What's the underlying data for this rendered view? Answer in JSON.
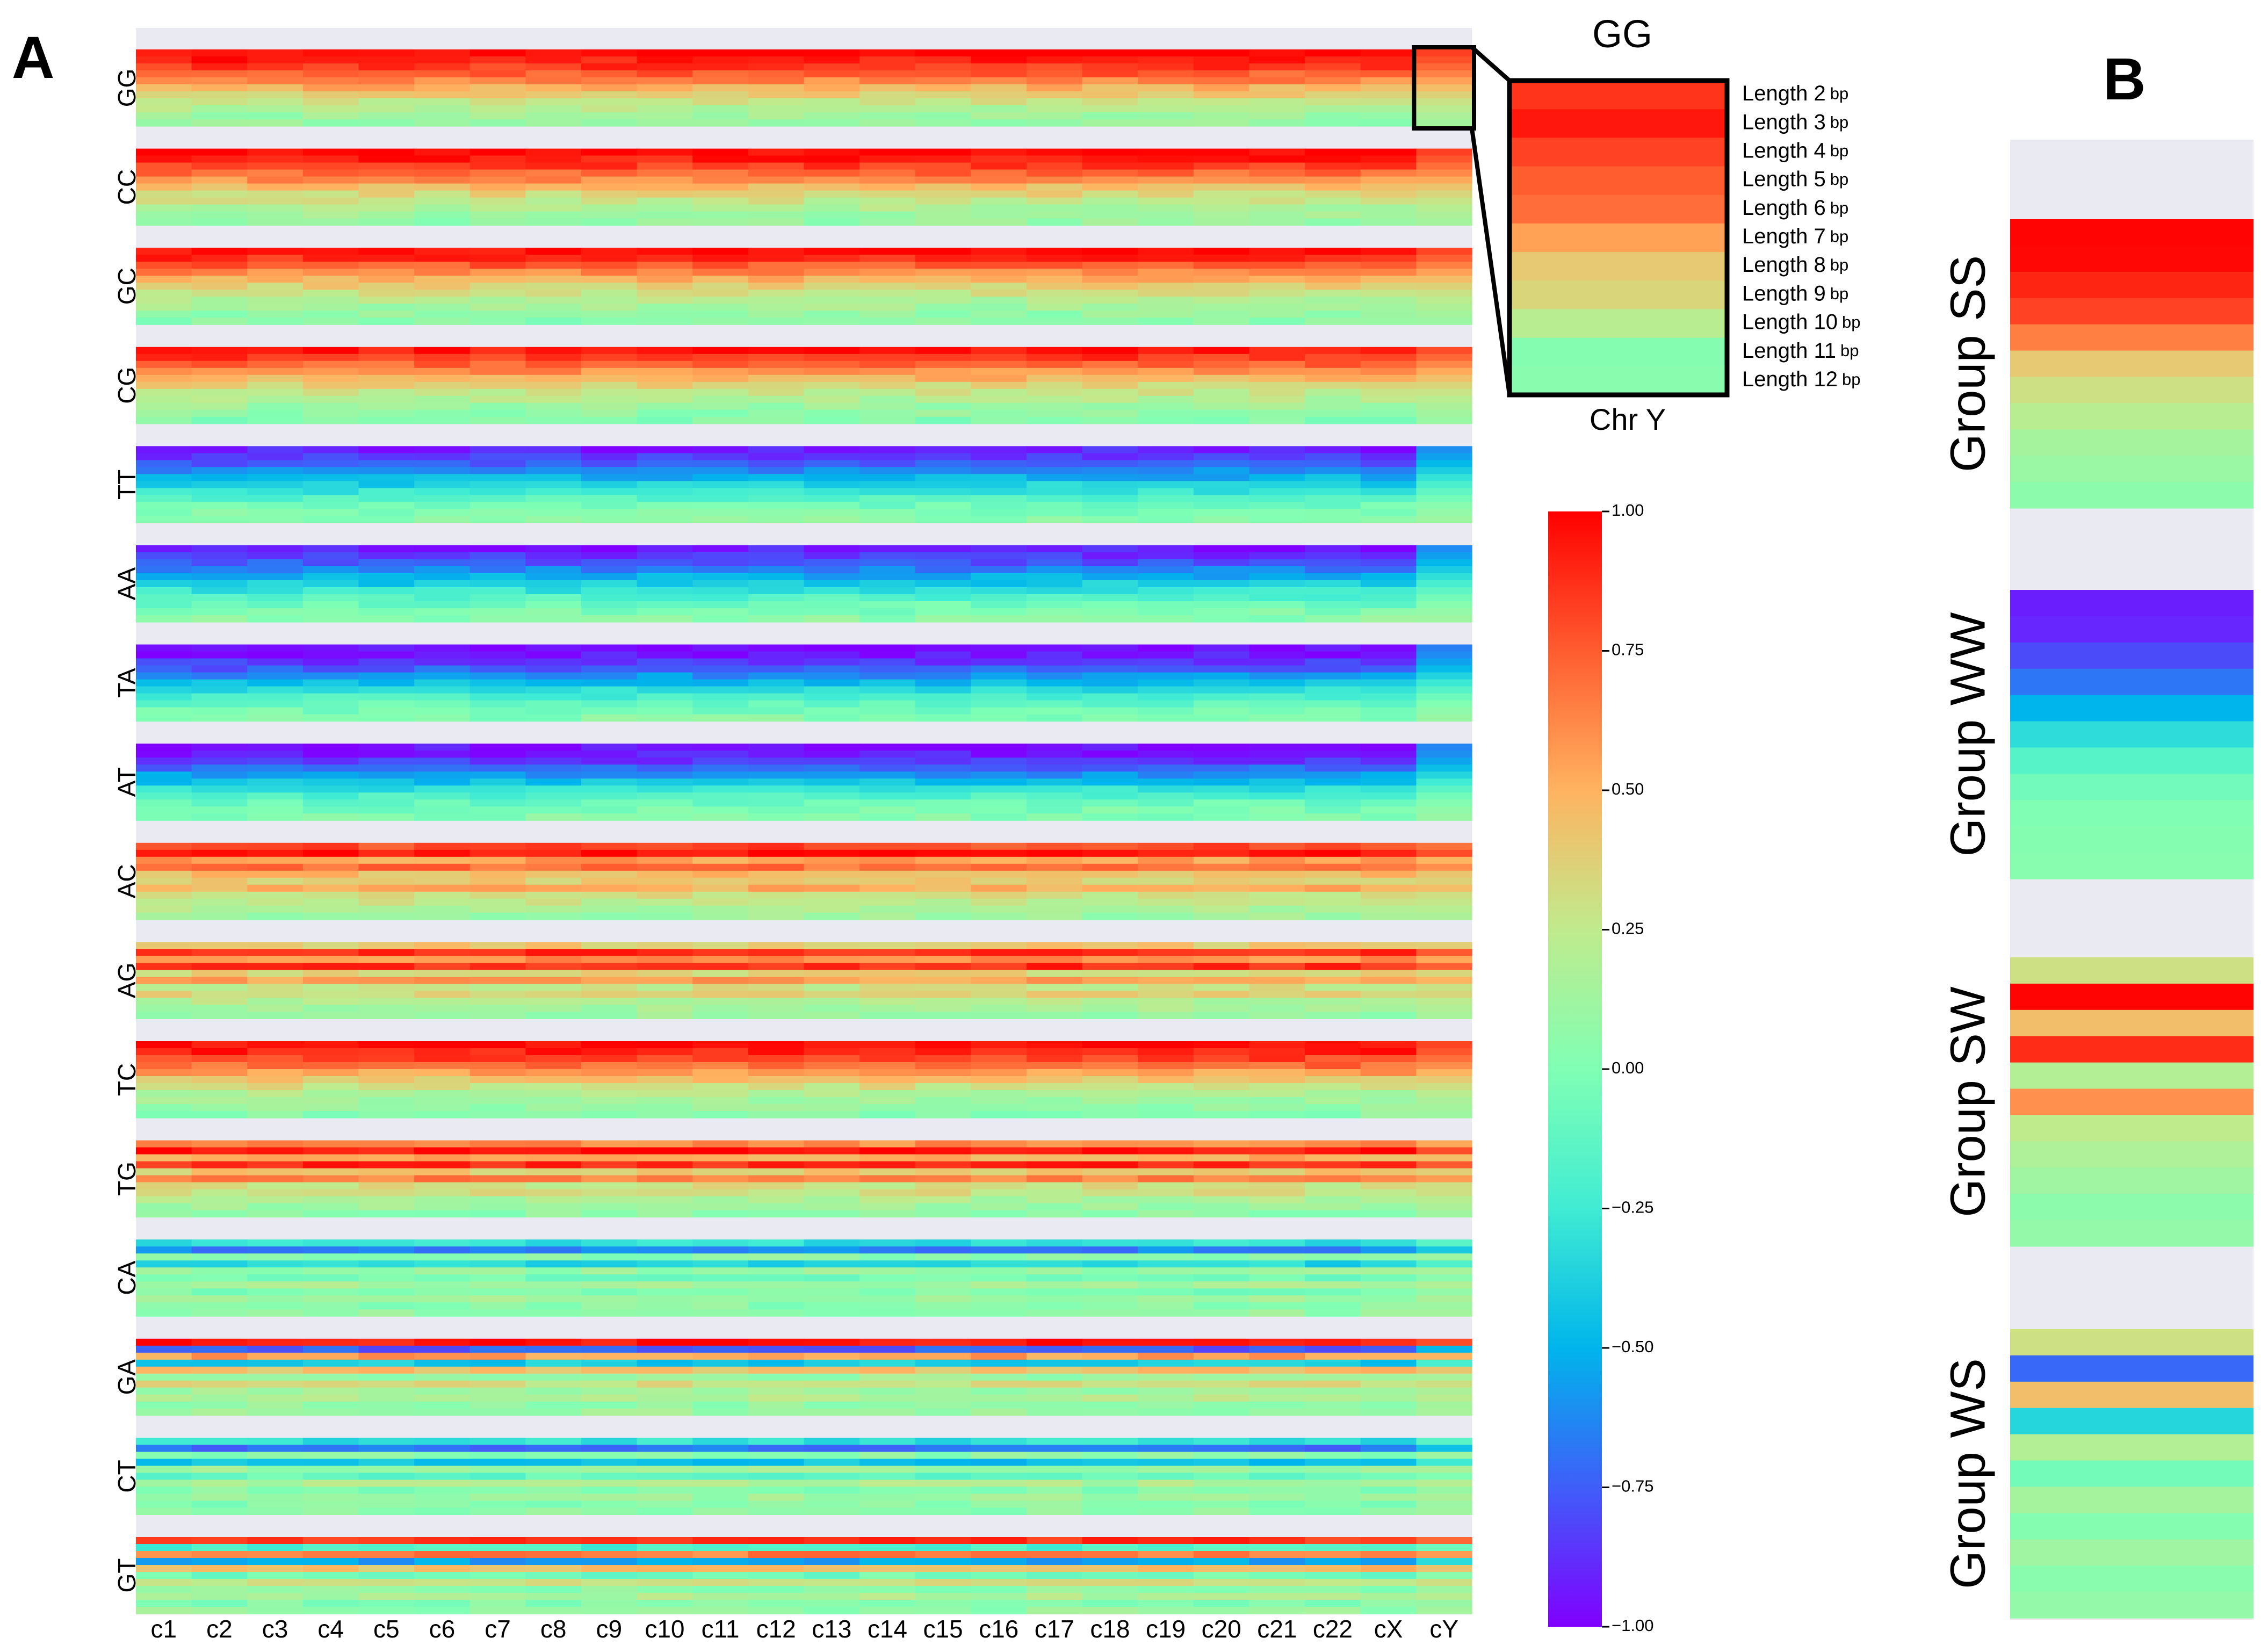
{
  "panels": {
    "a_label": "A",
    "b_label": "B"
  },
  "chart_data": [
    {
      "type": "heatmap",
      "title": "",
      "panel": "A",
      "xlabel": "",
      "ylabel": "",
      "columns": [
        "c1",
        "c2",
        "c3",
        "c4",
        "c5",
        "c6",
        "c7",
        "c8",
        "c9",
        "c10",
        "c11",
        "c12",
        "c13",
        "c14",
        "c15",
        "c16",
        "c17",
        "c18",
        "c19",
        "c20",
        "c21",
        "c22",
        "cX",
        "cY"
      ],
      "row_groups": [
        "GG",
        "CC",
        "GC",
        "CG",
        "TT",
        "AA",
        "TA",
        "AT",
        "AC",
        "AG",
        "TC",
        "TG",
        "CA",
        "GA",
        "CT",
        "GT"
      ],
      "rows_per_group": [
        "Length 2",
        "Length 3",
        "Length 4",
        "Length 5",
        "Length 6",
        "Length 7",
        "Length 8",
        "Length 9",
        "Length 10",
        "Length 11",
        "Length 12"
      ],
      "group_profiles": {
        "GG": [
          1.0,
          0.93,
          0.85,
          0.75,
          0.63,
          0.5,
          0.38,
          0.28,
          0.2,
          0.12,
          0.08
        ],
        "CC": [
          1.0,
          0.92,
          0.83,
          0.72,
          0.6,
          0.46,
          0.35,
          0.26,
          0.18,
          0.12,
          0.08
        ],
        "GC": [
          0.98,
          0.88,
          0.76,
          0.63,
          0.5,
          0.38,
          0.28,
          0.2,
          0.14,
          0.08,
          0.04
        ],
        "CG": [
          0.95,
          0.85,
          0.73,
          0.6,
          0.48,
          0.36,
          0.27,
          0.19,
          0.12,
          0.07,
          0.03
        ],
        "TT": [
          -0.92,
          -0.85,
          -0.75,
          -0.63,
          -0.5,
          -0.38,
          -0.27,
          -0.16,
          -0.06,
          0.0,
          0.05
        ],
        "AA": [
          -0.93,
          -0.86,
          -0.76,
          -0.64,
          -0.52,
          -0.4,
          -0.28,
          -0.17,
          -0.07,
          0.0,
          0.05
        ],
        "TA": [
          -0.98,
          -0.93,
          -0.85,
          -0.74,
          -0.6,
          -0.46,
          -0.32,
          -0.2,
          -0.1,
          -0.03,
          0.02
        ],
        "AT": [
          -0.96,
          -0.92,
          -0.84,
          -0.72,
          -0.58,
          -0.44,
          -0.3,
          -0.18,
          -0.08,
          -0.02,
          0.02
        ],
        "AC": [
          0.8,
          0.95,
          0.55,
          0.7,
          0.45,
          0.38,
          0.5,
          0.3,
          0.25,
          0.18,
          0.12
        ],
        "AG": [
          0.4,
          0.9,
          0.6,
          0.88,
          0.35,
          0.55,
          0.28,
          0.35,
          0.2,
          0.15,
          0.1
        ],
        "TC": [
          0.98,
          0.92,
          0.82,
          0.7,
          0.55,
          0.42,
          0.3,
          0.2,
          0.12,
          0.08,
          0.05
        ],
        "TG": [
          0.6,
          0.95,
          0.5,
          0.9,
          0.4,
          0.65,
          0.3,
          0.3,
          0.18,
          0.12,
          0.06
        ],
        "CA": [
          -0.3,
          -0.65,
          0.05,
          -0.35,
          0.1,
          -0.05,
          0.15,
          0.0,
          0.12,
          0.05,
          0.08
        ],
        "GA": [
          0.95,
          -0.75,
          0.55,
          -0.4,
          0.45,
          0.1,
          0.3,
          0.12,
          0.2,
          0.08,
          0.1
        ],
        "CT": [
          -0.3,
          -0.7,
          0.05,
          -0.45,
          0.12,
          -0.1,
          0.18,
          0.02,
          0.12,
          0.04,
          0.06
        ],
        "GT": [
          0.85,
          -0.2,
          0.65,
          -0.55,
          0.45,
          -0.05,
          0.3,
          0.05,
          0.18,
          0.02,
          0.08
        ]
      },
      "inset": {
        "title": "GG",
        "xlabel": "Chr Y",
        "rows": [
          {
            "label": "Length 2",
            "unit": "bp",
            "value": 0.86
          },
          {
            "label": "Length 3",
            "unit": "bp",
            "value": 0.94
          },
          {
            "label": "Length 4",
            "unit": "bp",
            "value": 0.82
          },
          {
            "label": "Length 5",
            "unit": "bp",
            "value": 0.75
          },
          {
            "label": "Length 6",
            "unit": "bp",
            "value": 0.7
          },
          {
            "label": "Length 7",
            "unit": "bp",
            "value": 0.55
          },
          {
            "label": "Length 8",
            "unit": "bp",
            "value": 0.4
          },
          {
            "label": "Length 9",
            "unit": "bp",
            "value": 0.35
          },
          {
            "label": "Length 10",
            "unit": "bp",
            "value": 0.22
          },
          {
            "label": "Length 11",
            "unit": "bp",
            "value": 0.02
          },
          {
            "label": "Length 12",
            "unit": "bp",
            "value": 0.04
          }
        ]
      },
      "colorbar": {
        "colormap": "rainbow",
        "range": [
          -1.0,
          1.0
        ],
        "ticks": [
          "1.00",
          "0.75",
          "0.50",
          "0.25",
          "0.00",
          "−0.25",
          "−0.50",
          "−0.75",
          "−1.00"
        ]
      }
    },
    {
      "type": "heatmap",
      "panel": "B",
      "groups": [
        {
          "label": "Group SS",
          "values": [
            0.99,
            0.98,
            0.9,
            0.82,
            0.65,
            0.4,
            0.3,
            0.22,
            0.15,
            0.1,
            0.05
          ]
        },
        {
          "label": "Group WW",
          "values": [
            -0.92,
            -0.9,
            -0.8,
            -0.68,
            -0.5,
            -0.32,
            -0.16,
            -0.06,
            0.0,
            0.02,
            0.03
          ]
        },
        {
          "label": "Group SW",
          "values": [
            0.3,
            0.99,
            0.45,
            0.88,
            0.2,
            0.6,
            0.25,
            0.18,
            0.12,
            0.05,
            0.08
          ]
        },
        {
          "label": "Group WS",
          "values": [
            0.3,
            -0.72,
            0.45,
            -0.35,
            0.2,
            -0.05,
            0.15,
            0.02,
            0.12,
            0.04,
            0.08
          ]
        }
      ]
    }
  ]
}
